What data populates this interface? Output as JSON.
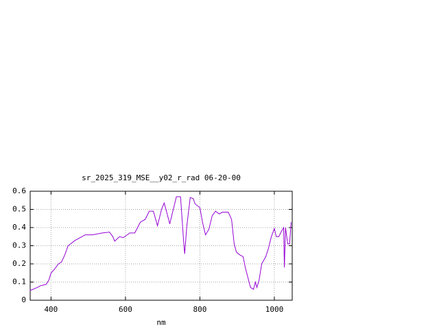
{
  "chart_data": {
    "type": "line",
    "title": "sr_2025_319_MSE__y02_r_rad 06-20-00",
    "x_label": "nm",
    "x": [
      343,
      363,
      372,
      387,
      394,
      400,
      409,
      420,
      428,
      437,
      446,
      465,
      483,
      492,
      511,
      538,
      557,
      566,
      571,
      584,
      594,
      612,
      625,
      640,
      653,
      664,
      675,
      686,
      697,
      704,
      712,
      719,
      726,
      737,
      748,
      756,
      759,
      765,
      774,
      782,
      787,
      800,
      807,
      815,
      824,
      833,
      842,
      852,
      861,
      876,
      885,
      892,
      898,
      907,
      916,
      922,
      929,
      936,
      944,
      949,
      953,
      959,
      966,
      977,
      984,
      992,
      1000,
      1005,
      1012,
      1018,
      1025,
      1027,
      1030,
      1036,
      1041,
      1045
    ],
    "series": [
      {
        "color": "#9400d3",
        "values": [
          0.053,
          0.07,
          0.08,
          0.087,
          0.11,
          0.15,
          0.17,
          0.2,
          0.21,
          0.25,
          0.3,
          0.33,
          0.35,
          0.36,
          0.36,
          0.37,
          0.375,
          0.35,
          0.325,
          0.35,
          0.345,
          0.37,
          0.37,
          0.43,
          0.445,
          0.49,
          0.49,
          0.41,
          0.5,
          0.535,
          0.475,
          0.42,
          0.48,
          0.57,
          0.57,
          0.33,
          0.255,
          0.41,
          0.565,
          0.56,
          0.53,
          0.51,
          0.43,
          0.36,
          0.39,
          0.465,
          0.49,
          0.475,
          0.485,
          0.485,
          0.445,
          0.31,
          0.265,
          0.25,
          0.24,
          0.18,
          0.125,
          0.07,
          0.06,
          0.1,
          0.07,
          0.11,
          0.2,
          0.24,
          0.285,
          0.35,
          0.395,
          0.35,
          0.35,
          0.375,
          0.4,
          0.18,
          0.4,
          0.31,
          0.31,
          0.43
        ]
      }
    ],
    "xlim": [
      344,
      1048
    ],
    "ylim": [
      0,
      0.6
    ],
    "xticks": [
      400,
      600,
      800,
      1000
    ],
    "yticks": [
      0,
      0.1,
      0.2,
      0.3,
      0.4,
      0.5,
      0.6
    ],
    "grid": true
  }
}
